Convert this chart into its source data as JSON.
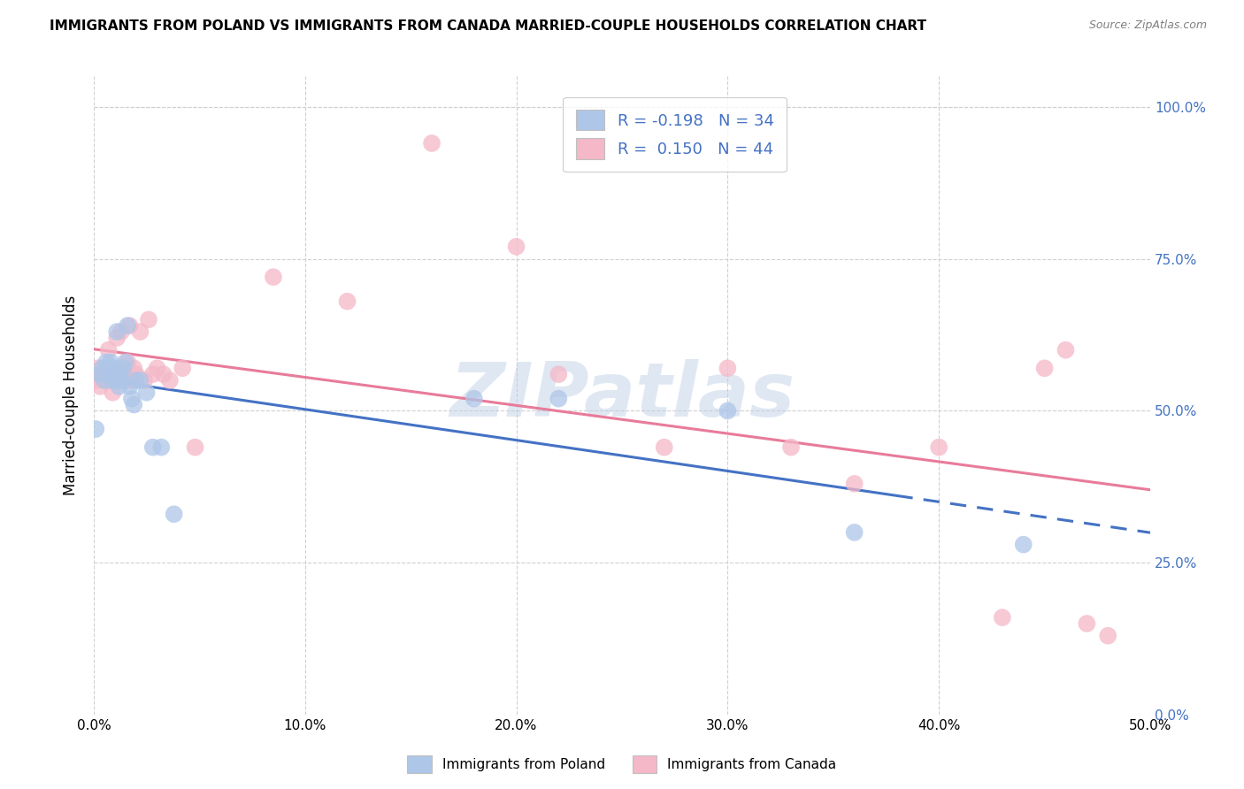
{
  "title": "IMMIGRANTS FROM POLAND VS IMMIGRANTS FROM CANADA MARRIED-COUPLE HOUSEHOLDS CORRELATION CHART",
  "source": "Source: ZipAtlas.com",
  "xmin": 0.0,
  "xmax": 0.5,
  "ymin": 0.0,
  "ymax": 1.05,
  "watermark": "ZIPatlas",
  "poland_color": "#aec6e8",
  "canada_color": "#f4b8c8",
  "poland_line_color": "#4472c4",
  "canada_line_color": "#e87b9a",
  "grid_color": "#d0d0d0",
  "right_axis_label_color": "#4472c4",
  "r_poland": -0.198,
  "n_poland": 34,
  "r_canada": 0.15,
  "n_canada": 44,
  "poland_x": [
    0.001,
    0.003,
    0.004,
    0.005,
    0.006,
    0.007,
    0.008,
    0.008,
    0.009,
    0.009,
    0.01,
    0.01,
    0.011,
    0.011,
    0.012,
    0.012,
    0.013,
    0.014,
    0.015,
    0.016,
    0.017,
    0.018,
    0.019,
    0.02,
    0.022,
    0.025,
    0.028,
    0.032,
    0.038,
    0.18,
    0.22,
    0.3,
    0.36,
    0.44
  ],
  "poland_y": [
    0.47,
    0.56,
    0.57,
    0.55,
    0.58,
    0.57,
    0.56,
    0.58,
    0.55,
    0.57,
    0.56,
    0.57,
    0.55,
    0.63,
    0.54,
    0.56,
    0.55,
    0.57,
    0.58,
    0.64,
    0.54,
    0.52,
    0.51,
    0.55,
    0.55,
    0.53,
    0.44,
    0.44,
    0.33,
    0.52,
    0.52,
    0.5,
    0.3,
    0.28
  ],
  "canada_x": [
    0.001,
    0.002,
    0.003,
    0.004,
    0.005,
    0.006,
    0.007,
    0.008,
    0.009,
    0.01,
    0.011,
    0.012,
    0.013,
    0.014,
    0.015,
    0.016,
    0.017,
    0.018,
    0.019,
    0.02,
    0.022,
    0.024,
    0.026,
    0.028,
    0.03,
    0.033,
    0.036,
    0.042,
    0.048,
    0.085,
    0.12,
    0.16,
    0.2,
    0.22,
    0.27,
    0.3,
    0.33,
    0.36,
    0.4,
    0.43,
    0.45,
    0.46,
    0.47,
    0.48
  ],
  "canada_y": [
    0.55,
    0.57,
    0.54,
    0.56,
    0.55,
    0.57,
    0.6,
    0.55,
    0.53,
    0.56,
    0.62,
    0.56,
    0.63,
    0.57,
    0.55,
    0.58,
    0.64,
    0.55,
    0.57,
    0.56,
    0.63,
    0.55,
    0.65,
    0.56,
    0.57,
    0.56,
    0.55,
    0.57,
    0.44,
    0.72,
    0.68,
    0.94,
    0.77,
    0.56,
    0.44,
    0.57,
    0.44,
    0.38,
    0.44,
    0.16,
    0.57,
    0.6,
    0.15,
    0.13
  ]
}
